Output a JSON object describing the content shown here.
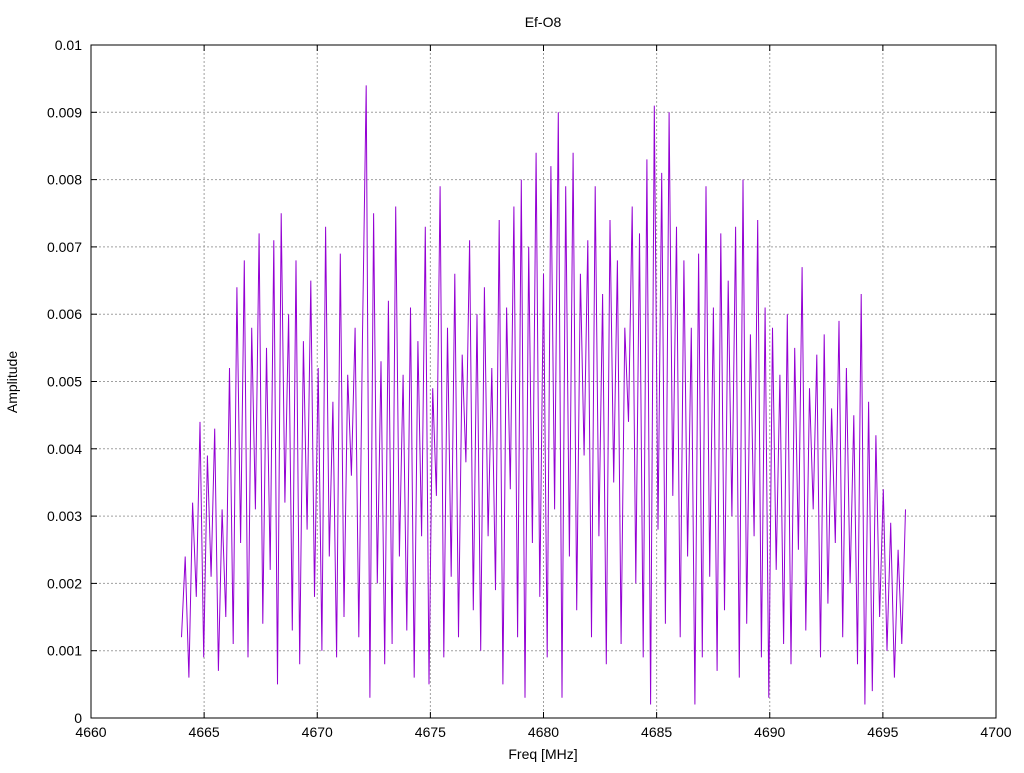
{
  "chart_data": {
    "type": "line",
    "title": "Ef-O8",
    "xlabel": "Freq [MHz]",
    "ylabel": "Amplitude",
    "xlim": [
      4660,
      4700
    ],
    "ylim": [
      0,
      0.01
    ],
    "grid": true,
    "legend": "none",
    "x_ticks": [
      "4660",
      "4665",
      "4670",
      "4675",
      "4680",
      "4685",
      "4690",
      "4695",
      "4700"
    ],
    "y_ticks": [
      "0",
      "0.001",
      "0.002",
      "0.003",
      "0.004",
      "0.005",
      "0.006",
      "0.007",
      "0.008",
      "0.009",
      "0.01"
    ],
    "series": [
      {
        "name": "Ef-O8",
        "color": "#9400d3",
        "x_start": 4664,
        "x_end": 4696,
        "values": [
          0.0012,
          0.0024,
          0.0006,
          0.0032,
          0.0018,
          0.0044,
          0.0009,
          0.0039,
          0.0021,
          0.0043,
          0.0007,
          0.0031,
          0.0015,
          0.0052,
          0.0011,
          0.0064,
          0.0026,
          0.0068,
          0.0009,
          0.0058,
          0.0031,
          0.0072,
          0.0014,
          0.0055,
          0.0022,
          0.0071,
          0.0005,
          0.0075,
          0.0032,
          0.006,
          0.0013,
          0.0068,
          0.0008,
          0.0056,
          0.0028,
          0.0065,
          0.0018,
          0.0052,
          0.001,
          0.0073,
          0.0024,
          0.0047,
          0.0009,
          0.0069,
          0.0015,
          0.0051,
          0.0036,
          0.0058,
          0.0012,
          0.0057,
          0.0094,
          0.0003,
          0.0075,
          0.002,
          0.0053,
          0.0008,
          0.0062,
          0.0011,
          0.0076,
          0.0024,
          0.0051,
          0.0013,
          0.0061,
          0.0006,
          0.0056,
          0.0027,
          0.0073,
          0.0005,
          0.0049,
          0.0033,
          0.0079,
          0.0009,
          0.0058,
          0.0021,
          0.0066,
          0.0012,
          0.0054,
          0.0038,
          0.0071,
          0.0016,
          0.006,
          0.001,
          0.0064,
          0.0027,
          0.0052,
          0.0019,
          0.0074,
          0.0005,
          0.0061,
          0.0034,
          0.0076,
          0.0012,
          0.008,
          0.0003,
          0.007,
          0.0026,
          0.0084,
          0.0018,
          0.0066,
          0.0009,
          0.0082,
          0.0031,
          0.009,
          0.0003,
          0.0079,
          0.0024,
          0.0084,
          0.0016,
          0.0066,
          0.0039,
          0.0071,
          0.0012,
          0.0079,
          0.0027,
          0.0063,
          0.0008,
          0.0074,
          0.0035,
          0.0068,
          0.0011,
          0.0058,
          0.0044,
          0.0076,
          0.002,
          0.0072,
          0.0009,
          0.0083,
          0.0002,
          0.0091,
          0.0028,
          0.0081,
          0.0014,
          0.009,
          0.0033,
          0.0073,
          0.0012,
          0.0068,
          0.0024,
          0.0058,
          0.0002,
          0.0069,
          0.0009,
          0.0079,
          0.0021,
          0.0061,
          0.0007,
          0.0072,
          0.0016,
          0.0065,
          0.003,
          0.0073,
          0.0006,
          0.008,
          0.0014,
          0.0057,
          0.0027,
          0.0074,
          0.0009,
          0.0061,
          0.0003,
          0.0058,
          0.0022,
          0.0051,
          0.0011,
          0.006,
          0.0008,
          0.0055,
          0.0025,
          0.0067,
          0.0013,
          0.0049,
          0.0031,
          0.0054,
          0.0009,
          0.0057,
          0.0017,
          0.0046,
          0.0026,
          0.0059,
          0.0012,
          0.0052,
          0.002,
          0.0045,
          0.0008,
          0.0063,
          0.0002,
          0.0047,
          0.0004,
          0.0042,
          0.0015,
          0.0034,
          0.001,
          0.0029,
          0.0006,
          0.0025,
          0.0011,
          0.0031
        ]
      }
    ]
  }
}
